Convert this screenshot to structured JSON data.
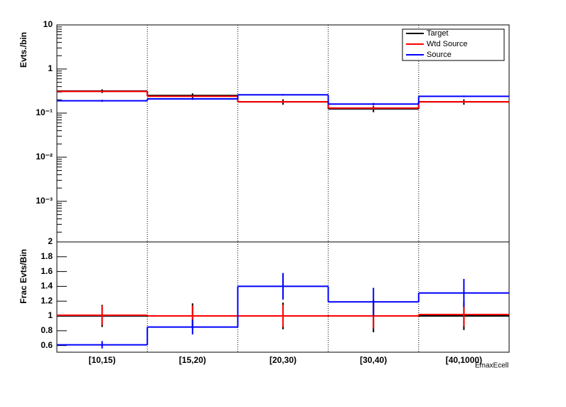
{
  "chart_data": [
    {
      "type": "step",
      "y_label": "Evts./bin",
      "log_y": true,
      "ylim": [
        0.00012,
        10
      ],
      "yticks": [
        10,
        1,
        {
          "value": 0.1,
          "label": "10⁻¹"
        },
        {
          "value": 0.01,
          "label": "10⁻²"
        },
        {
          "value": 0.001,
          "label": "10⁻³"
        }
      ],
      "grid_x": true,
      "legend": "top-right",
      "series": [
        {
          "name": "Target",
          "color": "#000000",
          "values": [
            0.316,
            0.25,
            0.18,
            0.125,
            0.18
          ],
          "errors": [
            0.03,
            0.03,
            0.025,
            0.02,
            0.025
          ]
        },
        {
          "name": "Wtd Source",
          "color": "#ff0000",
          "values": [
            0.31,
            0.24,
            0.18,
            0.13,
            0.18
          ],
          "errors": [
            0.01,
            0.01,
            0.01,
            0.01,
            0.01
          ]
        },
        {
          "name": "Source",
          "color": "#0000ff",
          "values": [
            0.19,
            0.21,
            0.26,
            0.16,
            0.24
          ],
          "errors": [
            0.01,
            0.01,
            0.01,
            0.01,
            0.01
          ]
        }
      ]
    },
    {
      "type": "step",
      "y_label": "Frac Evts/Bin",
      "x_label": "EmaxEcell",
      "categories": [
        "[10,15)",
        "[15,20)",
        "[20,30)",
        "[30,40)",
        "[40,1000)"
      ],
      "ylim": [
        0.51,
        2
      ],
      "yticks": [
        0.6,
        0.8,
        1,
        1.2,
        1.4,
        1.6,
        1.8,
        2
      ],
      "grid_x": true,
      "series": [
        {
          "name": "Target",
          "color": "#000000",
          "values": [
            1,
            1,
            1,
            1,
            1
          ],
          "errors": [
            0.15,
            0.17,
            0.18,
            0.22,
            0.19
          ]
        },
        {
          "name": "Wtd Source",
          "color": "#ff0000",
          "values": [
            1.01,
            1.0,
            1.0,
            1.0,
            1.02
          ],
          "errors": [
            0.13,
            0.14,
            0.15,
            0.17,
            0.16
          ]
        },
        {
          "name": "Source",
          "color": "#0000ff",
          "values": [
            0.61,
            0.85,
            1.4,
            1.19,
            1.31
          ],
          "errors": [
            0.05,
            0.1,
            0.18,
            0.19,
            0.19
          ]
        }
      ]
    }
  ]
}
